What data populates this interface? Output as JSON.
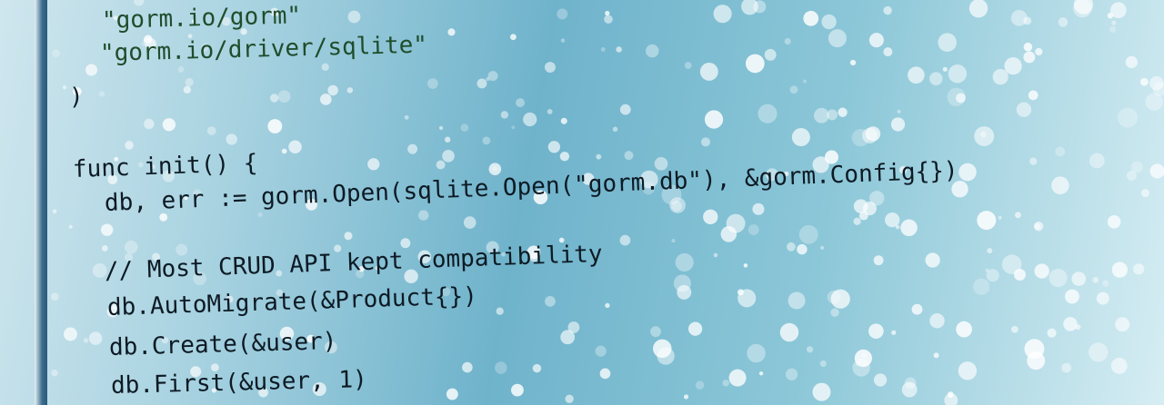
{
  "code": {
    "lines": [
      "\"gorm.io/gorm\"",
      "\"gorm.io/driver/sqlite\"",
      ")",
      "func init() {",
      "db, err := gorm.Open(sqlite.Open(\"gorm.db\"), &gorm.Config{})",
      "// Most CRUD API kept compatibility",
      "db.AutoMigrate(&Product{})",
      "db.Create(&user)",
      "db.First(&user, 1)"
    ]
  }
}
